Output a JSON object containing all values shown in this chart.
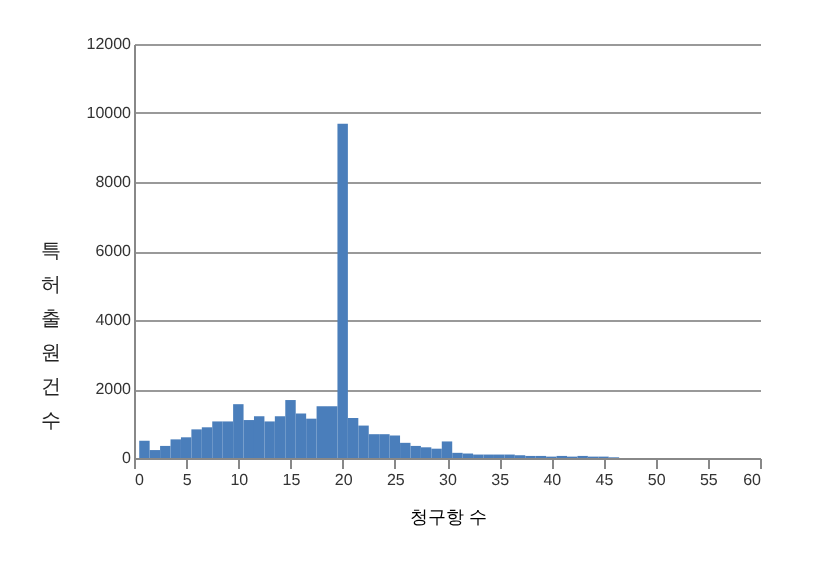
{
  "chart_data": {
    "type": "histogram",
    "xlabel": "청구항 수",
    "ylabel": "특허 출원 건수",
    "color": "#4a7ebb",
    "bins": [
      0.5,
      1.5,
      2.5,
      3.5,
      4.5,
      5.5,
      6.5,
      7.5,
      8.5,
      9.5,
      10.5,
      11.5,
      12.5,
      13.5,
      14.5,
      15.5,
      16.5,
      17.5,
      18.5,
      19.5,
      20.5,
      21.5,
      22.5,
      23.5,
      24.5,
      25.5,
      26.5,
      27.5,
      28.5,
      29.5,
      30.5,
      31.5,
      32.5,
      33.5,
      34.5,
      35.5,
      36.5,
      37.5,
      38.5,
      39.5,
      40.5,
      41.5,
      42.5,
      43.5,
      44.5,
      45.5,
      46.5
    ],
    "values": [
      500,
      230,
      350,
      540,
      600,
      830,
      890,
      1060,
      1060,
      1560,
      1100,
      1210,
      1060,
      1210,
      1680,
      1290,
      1140,
      1500,
      1500,
      9690,
      1160,
      940,
      690,
      690,
      650,
      440,
      350,
      310,
      270,
      480,
      150,
      130,
      100,
      100,
      100,
      100,
      80,
      60,
      60,
      40,
      60,
      40,
      60,
      40,
      40,
      20
    ],
    "xlim": [
      0,
      60
    ],
    "xticks": [
      0,
      5,
      10,
      15,
      20,
      25,
      30,
      35,
      40,
      45,
      50,
      55,
      60
    ],
    "ylim": [
      0,
      12000
    ],
    "yticks": [
      0,
      2000,
      4000,
      6000,
      8000,
      10000,
      12000
    ],
    "grid": "y"
  }
}
